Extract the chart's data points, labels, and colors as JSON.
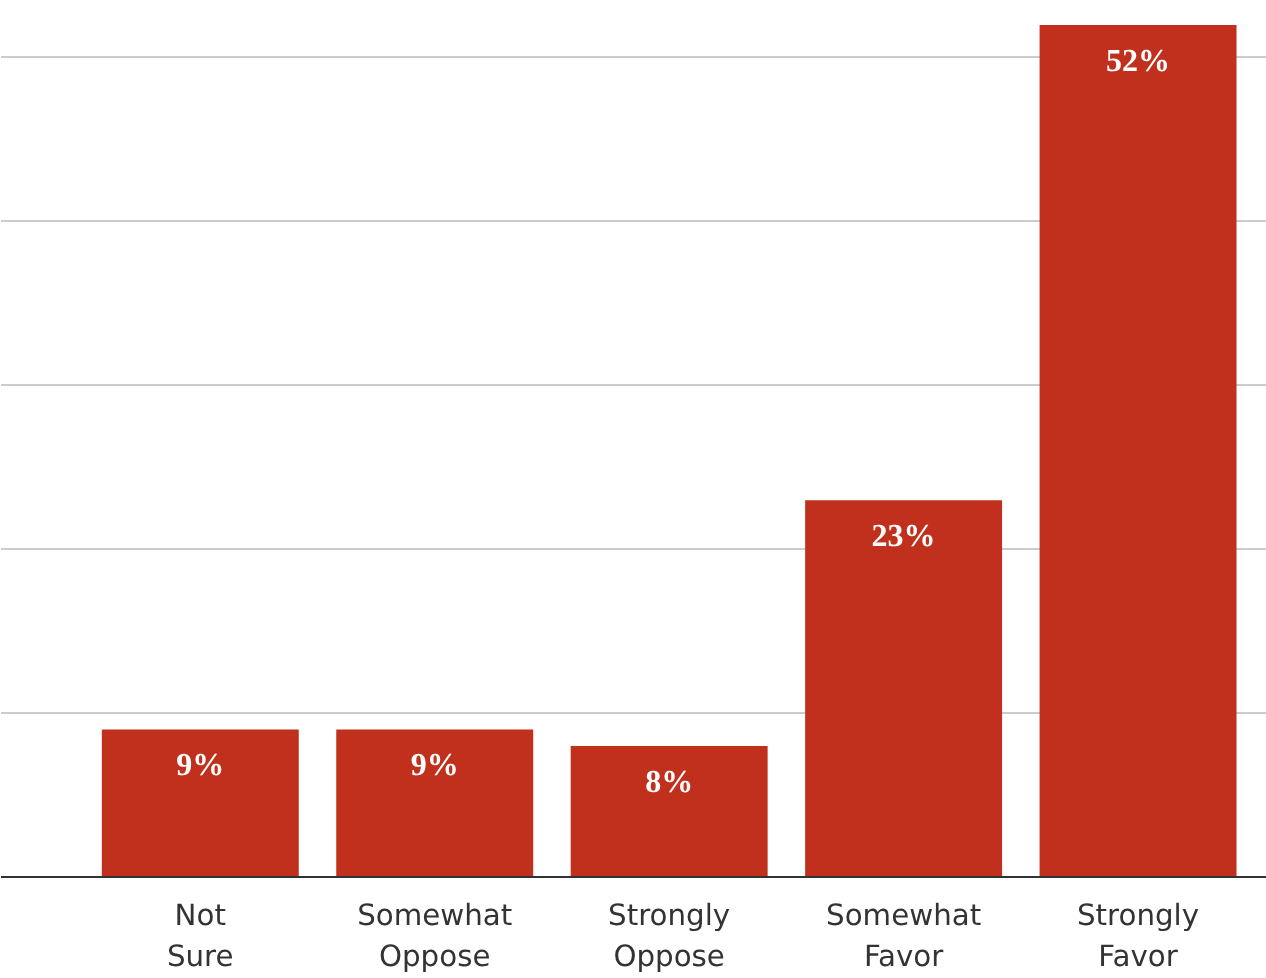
{
  "chart_data": {
    "type": "bar",
    "categories": [
      "Not Sure",
      "Somewhat Oppose",
      "Strongly Oppose",
      "Somewhat Favor",
      "Strongly Favor"
    ],
    "values": [
      9,
      9,
      8,
      23,
      52
    ],
    "value_labels": [
      "9%",
      "9%",
      "8%",
      "23%",
      "52%"
    ],
    "color": "#c0301c",
    "ylim": [
      0,
      52
    ],
    "yticks": [
      {
        "value": 0,
        "label": null
      },
      {
        "value": 10,
        "label": null
      },
      {
        "value": 20,
        "label": null
      },
      {
        "value": 30,
        "label": null
      },
      {
        "value": 40,
        "label": null
      },
      {
        "value": 50,
        "label": null
      }
    ],
    "grid": "y",
    "tick_labels": "x"
  }
}
